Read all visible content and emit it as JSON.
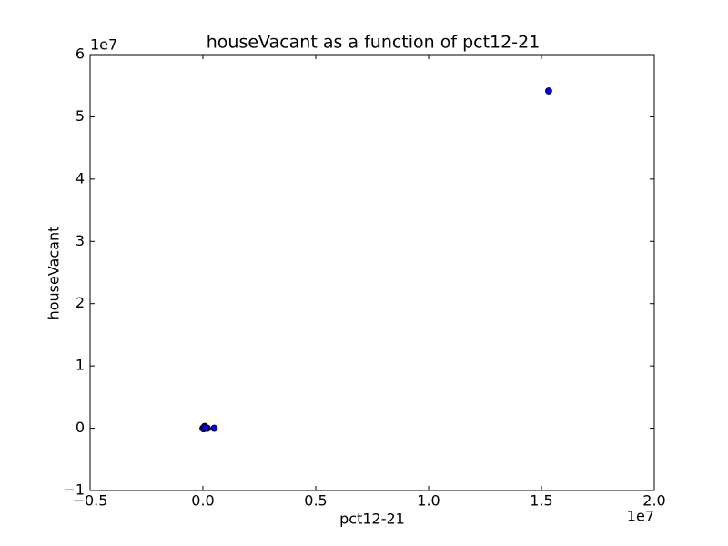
{
  "chart_data": {
    "type": "scatter",
    "title": "houseVacant as a function of pct12-21",
    "x_label": "pct12-21",
    "y_label": "houseVacant",
    "x_offset_label": "1e7",
    "y_offset_label": "1e7",
    "x": [
      15320000,
      0,
      50000,
      80000,
      100000,
      200000,
      500000,
      30000,
      60000,
      120000
    ],
    "y": [
      54150000,
      0,
      100000,
      300000,
      0,
      0,
      0,
      -100000,
      200000,
      50000
    ],
    "color": "#0000ff",
    "xlim": [
      -5000000,
      20000000
    ],
    "ylim": [
      -10000000,
      60000000
    ],
    "xticks": [
      {
        "value": -5000000,
        "label": "−0.5"
      },
      {
        "value": 0,
        "label": "0.0"
      },
      {
        "value": 5000000,
        "label": "0.5"
      },
      {
        "value": 10000000,
        "label": "1.0"
      },
      {
        "value": 15000000,
        "label": "1.5"
      },
      {
        "value": 20000000,
        "label": "2.0"
      }
    ],
    "yticks": [
      {
        "value": -10000000,
        "label": "−1"
      },
      0,
      {
        "value": 10000000,
        "label": "1"
      },
      {
        "value": 20000000,
        "label": "2"
      },
      {
        "value": 30000000,
        "label": "3"
      },
      {
        "value": 40000000,
        "label": "4"
      },
      {
        "value": 50000000,
        "label": "5"
      },
      {
        "value": 60000000,
        "label": "6"
      }
    ]
  }
}
